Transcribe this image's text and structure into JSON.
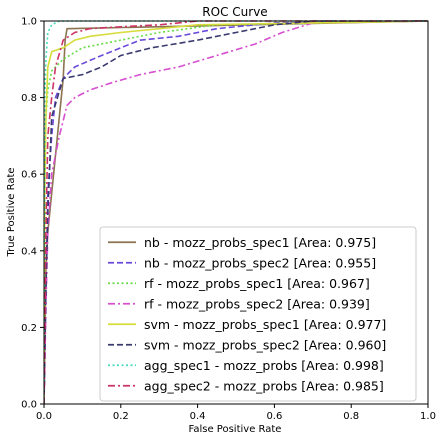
{
  "chart_data": {
    "type": "line",
    "title": "ROC Curve",
    "xlabel": "False Positive Rate",
    "ylabel": "True Positive Rate",
    "xlim": [
      0.0,
      1.0
    ],
    "ylim": [
      0.0,
      1.0
    ],
    "xticks": [
      "0.0",
      "0.2",
      "0.4",
      "0.6",
      "0.8",
      "1.0"
    ],
    "yticks": [
      "0.0",
      "0.2",
      "0.4",
      "0.6",
      "0.8",
      "1.0"
    ],
    "grid": false,
    "legend_position": "lower-right",
    "series": [
      {
        "name": "nb - mozz_probs_spec1 [Area: 0.975]",
        "color": "#8c7350",
        "dash": "solid",
        "x": [
          0.0,
          0.005,
          0.01,
          0.02,
          0.03,
          0.04,
          0.05,
          0.055,
          0.06,
          1.0
        ],
        "y": [
          0.0,
          0.35,
          0.45,
          0.55,
          0.65,
          0.75,
          0.85,
          0.95,
          0.98,
          1.0
        ]
      },
      {
        "name": "nb - mozz_probs_spec2 [Area: 0.955]",
        "color": "#6a4ad9",
        "dash": "dashed",
        "x": [
          0.0,
          0.005,
          0.01,
          0.02,
          0.03,
          0.05,
          0.08,
          0.15,
          0.25,
          0.35,
          0.45,
          0.6,
          1.0
        ],
        "y": [
          0.0,
          0.3,
          0.55,
          0.7,
          0.8,
          0.85,
          0.88,
          0.91,
          0.95,
          0.96,
          0.98,
          0.995,
          1.0
        ]
      },
      {
        "name": "rf - mozz_probs_spec1 [Area: 0.967]",
        "color": "#66dd44",
        "dash": "dotted",
        "x": [
          0.0,
          0.002,
          0.005,
          0.01,
          0.02,
          0.05,
          0.1,
          0.2,
          0.3,
          0.45,
          1.0
        ],
        "y": [
          0.0,
          0.6,
          0.75,
          0.82,
          0.87,
          0.9,
          0.93,
          0.95,
          0.97,
          0.99,
          1.0
        ]
      },
      {
        "name": "rf - mozz_probs_spec2 [Area: 0.939]",
        "color": "#d64fcf",
        "dash": "dashdot",
        "x": [
          0.0,
          0.005,
          0.01,
          0.02,
          0.04,
          0.06,
          0.08,
          0.12,
          0.18,
          0.25,
          0.35,
          0.45,
          0.55,
          0.62,
          0.7,
          1.0
        ],
        "y": [
          0.0,
          0.25,
          0.45,
          0.6,
          0.7,
          0.78,
          0.8,
          0.82,
          0.84,
          0.86,
          0.88,
          0.91,
          0.94,
          0.97,
          0.995,
          1.0
        ]
      },
      {
        "name": "svm - mozz_probs_spec1 [Area: 0.977]",
        "color": "#d6dc3a",
        "dash": "solid",
        "x": [
          0.0,
          0.002,
          0.005,
          0.01,
          0.02,
          0.05,
          0.08,
          0.12,
          0.2,
          0.3,
          0.4,
          1.0
        ],
        "y": [
          0.0,
          0.55,
          0.75,
          0.88,
          0.92,
          0.93,
          0.95,
          0.96,
          0.97,
          0.98,
          0.99,
          1.0
        ]
      },
      {
        "name": "svm - mozz_probs_spec2 [Area: 0.960]",
        "color": "#3a3a6e",
        "dash": "dashed",
        "x": [
          0.0,
          0.005,
          0.01,
          0.02,
          0.05,
          0.1,
          0.15,
          0.2,
          0.28,
          0.4,
          0.5,
          0.6,
          0.7,
          1.0
        ],
        "y": [
          0.0,
          0.3,
          0.5,
          0.75,
          0.85,
          0.86,
          0.88,
          0.91,
          0.93,
          0.95,
          0.97,
          0.99,
          1.0,
          1.0
        ]
      },
      {
        "name": "agg_spec1 - mozz_probs [Area: 0.998]",
        "color": "#44ddbb",
        "dash": "dotted",
        "x": [
          0.0,
          0.002,
          0.005,
          0.01,
          0.02,
          0.04,
          0.1,
          1.0
        ],
        "y": [
          0.0,
          0.8,
          0.9,
          0.97,
          0.99,
          1.0,
          1.0,
          1.0
        ]
      },
      {
        "name": "agg_spec2 - mozz_probs [Area: 0.985]",
        "color": "#cc3366",
        "dash": "dashdot",
        "x": [
          0.0,
          0.005,
          0.01,
          0.02,
          0.03,
          0.05,
          0.08,
          0.12,
          0.2,
          0.3,
          0.4,
          1.0
        ],
        "y": [
          0.0,
          0.45,
          0.7,
          0.8,
          0.88,
          0.95,
          0.97,
          0.98,
          0.985,
          0.99,
          1.0,
          1.0
        ]
      }
    ]
  }
}
